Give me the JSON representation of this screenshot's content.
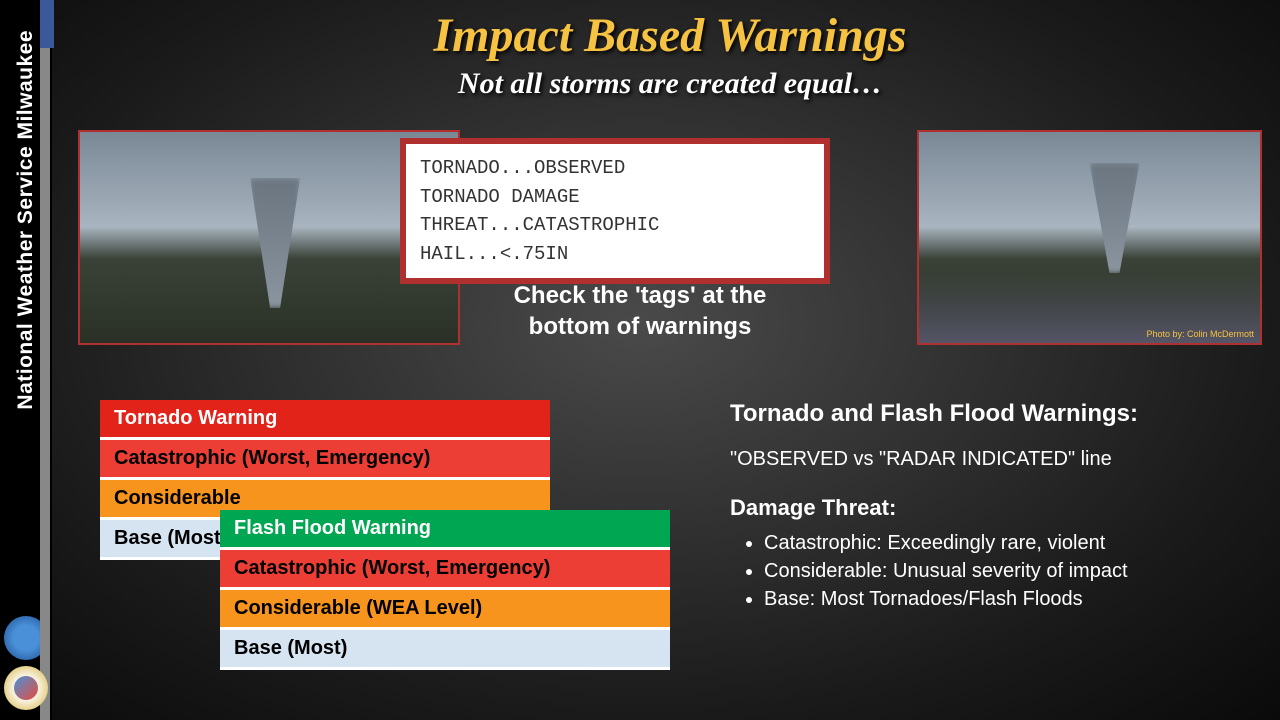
{
  "sidebar": {
    "org_text": "National Weather Service Milwaukee",
    "logo1_name": "NOAA",
    "logo2_name": "NWS"
  },
  "header": {
    "title": "Impact Based Warnings",
    "subtitle": "Not all storms are created equal…"
  },
  "alert": {
    "line1": "TORNADO...OBSERVED",
    "line2": "TORNADO DAMAGE THREAT...CATASTROPHIC",
    "line3": "HAIL...<.75IN",
    "border_color": "#b03030",
    "bg_color": "#ffffff",
    "font": "Courier New"
  },
  "check_tags": "Check the 'tags' at the bottom of warnings",
  "tornado_table": {
    "header": "Tornado Warning",
    "header_color": "#e2231a",
    "rows": [
      {
        "label": "Catastrophic (Worst, Emergency)",
        "color": "#ed3e36"
      },
      {
        "label": "Considerable",
        "color": "#f7941d"
      },
      {
        "label": "Base (Most)",
        "color": "#d6e3f0"
      }
    ]
  },
  "flood_table": {
    "header": "Flash Flood Warning",
    "header_color": "#00a651",
    "rows": [
      {
        "label": "Catastrophic (Worst, Emergency)",
        "color": "#ed3e36"
      },
      {
        "label": "Considerable (WEA Level)",
        "color": "#f7941d"
      },
      {
        "label": "Base (Most)",
        "color": "#d6e3f0"
      }
    ]
  },
  "right_panel": {
    "heading": "Tornado and Flash Flood Warnings:",
    "line": "\"OBSERVED vs \"RADAR INDICATED\" line",
    "subheading": "Damage Threat:",
    "bullets": [
      "Catastrophic: Exceedingly rare, violent",
      "Considerable: Unusual severity of impact",
      "Base: Most Tornadoes/Flash Floods"
    ]
  },
  "photo_credit": "Photo by: Colin McDermott",
  "colors": {
    "title": "#f5c242",
    "background_center": "#4a4a4a",
    "background_edge": "#0a0a0a",
    "accent_blue": "#3b5998"
  }
}
